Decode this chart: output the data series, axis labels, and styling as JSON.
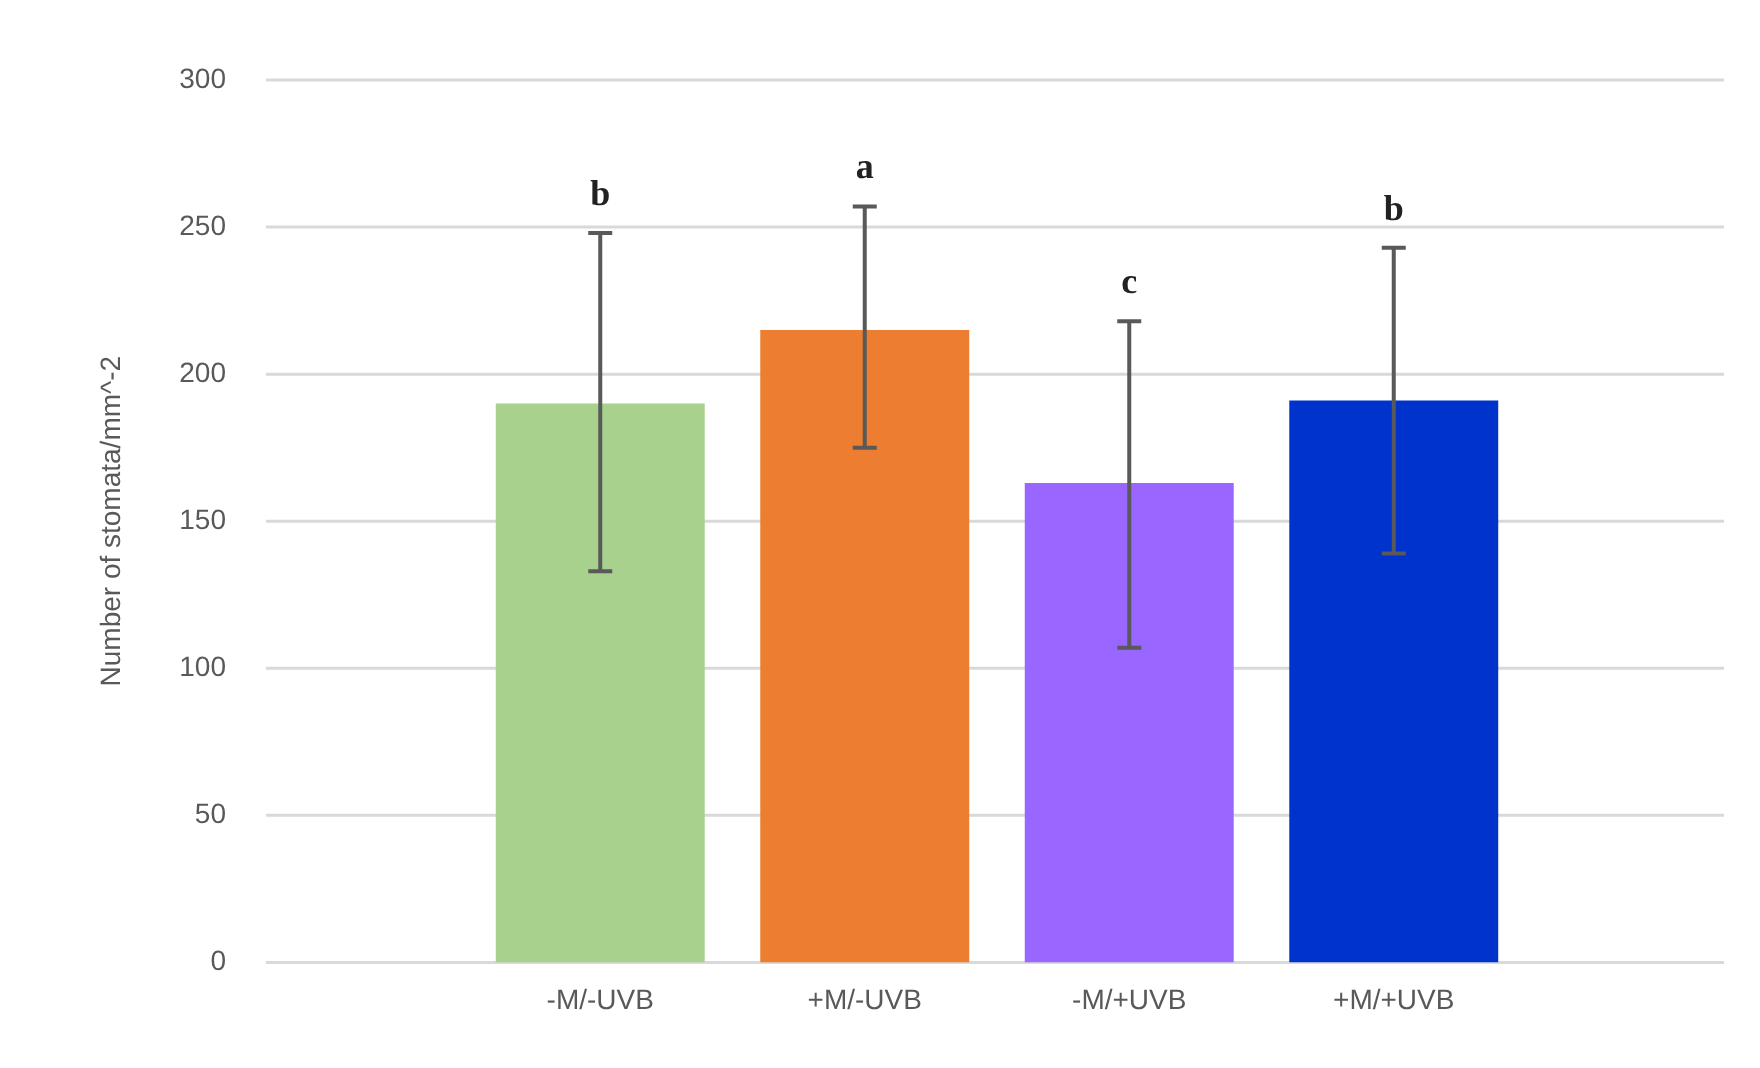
{
  "chart_data": {
    "type": "bar",
    "ylabel": "Number of stomata/mm^-2",
    "categories": [
      "-M/-UVB",
      "+M/-UVB",
      "-M/+UVB",
      "+M/+UVB"
    ],
    "values": [
      190,
      215,
      163,
      191
    ],
    "colors": [
      "#a9d18e",
      "#ed7d31",
      "#9966ff",
      "#0033cc"
    ],
    "errors": [
      [
        133,
        248
      ],
      [
        175,
        257
      ],
      [
        107,
        218
      ],
      [
        139,
        243
      ]
    ],
    "ylim": [
      0,
      300
    ],
    "yticks": [
      0,
      50,
      100,
      150,
      200,
      250,
      300
    ],
    "grid": "y",
    "annotations": [
      "b",
      "a",
      "c",
      "b"
    ]
  }
}
